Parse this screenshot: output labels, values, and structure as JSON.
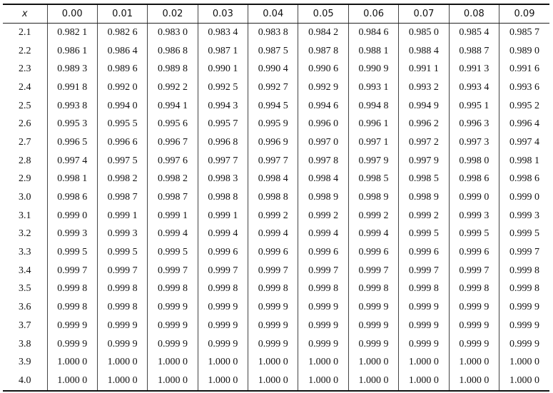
{
  "table": {
    "header": [
      "x",
      "0.00",
      "0.01",
      "0.02",
      "0.03",
      "0.04",
      "0.05",
      "0.06",
      "0.07",
      "0.08",
      "0.09"
    ],
    "rows": [
      [
        "2.1",
        "0.982 1",
        "0.982 6",
        "0.983 0",
        "0.983 4",
        "0.983 8",
        "0.984 2",
        "0.984 6",
        "0.985 0",
        "0.985 4",
        "0.985 7"
      ],
      [
        "2.2",
        "0.986 1",
        "0.986 4",
        "0.986 8",
        "0.987 1",
        "0.987 5",
        "0.987 8",
        "0.988 1",
        "0.988 4",
        "0.988 7",
        "0.989 0"
      ],
      [
        "2.3",
        "0.989 3",
        "0.989 6",
        "0.989 8",
        "0.990 1",
        "0.990 4",
        "0.990 6",
        "0.990 9",
        "0.991 1",
        "0.991 3",
        "0.991 6"
      ],
      [
        "2.4",
        "0.991 8",
        "0.992 0",
        "0.992 2",
        "0.992 5",
        "0.992 7",
        "0.992 9",
        "0.993 1",
        "0.993 2",
        "0.993 4",
        "0.993 6"
      ],
      [
        "2.5",
        "0.993 8",
        "0.994 0",
        "0.994 1",
        "0.994 3",
        "0.994 5",
        "0.994 6",
        "0.994 8",
        "0.994 9",
        "0.995 1",
        "0.995 2"
      ],
      [
        "2.6",
        "0.995 3",
        "0.995 5",
        "0.995 6",
        "0.995 7",
        "0.995 9",
        "0.996 0",
        "0.996 1",
        "0.996 2",
        "0.996 3",
        "0.996 4"
      ],
      [
        "2.7",
        "0.996 5",
        "0.996 6",
        "0.996 7",
        "0.996 8",
        "0.996 9",
        "0.997 0",
        "0.997 1",
        "0.997 2",
        "0.997 3",
        "0.997 4"
      ],
      [
        "2.8",
        "0.997 4",
        "0.997 5",
        "0.997 6",
        "0.997 7",
        "0.997 7",
        "0.997 8",
        "0.997 9",
        "0.997 9",
        "0.998 0",
        "0.998 1"
      ],
      [
        "2.9",
        "0.998 1",
        "0.998 2",
        "0.998 2",
        "0.998 3",
        "0.998 4",
        "0.998 4",
        "0.998 5",
        "0.998 5",
        "0.998 6",
        "0.998 6"
      ],
      [
        "3.0",
        "0.998 6",
        "0.998 7",
        "0.998 7",
        "0.998 8",
        "0.998 8",
        "0.998 9",
        "0.998 9",
        "0.998 9",
        "0.999 0",
        "0.999 0"
      ],
      [
        "3.1",
        "0.999 0",
        "0.999 1",
        "0.999 1",
        "0.999 1",
        "0.999 2",
        "0.999 2",
        "0.999 2",
        "0.999 2",
        "0.999 3",
        "0.999 3"
      ],
      [
        "3.2",
        "0.999 3",
        "0.999 3",
        "0.999 4",
        "0.999 4",
        "0.999 4",
        "0.999 4",
        "0.999 4",
        "0.999 5",
        "0.999 5",
        "0.999 5"
      ],
      [
        "3.3",
        "0.999 5",
        "0.999 5",
        "0.999 5",
        "0.999 6",
        "0.999 6",
        "0.999 6",
        "0.999 6",
        "0.999 6",
        "0.999 6",
        "0.999 7"
      ],
      [
        "3.4",
        "0.999 7",
        "0.999 7",
        "0.999 7",
        "0.999 7",
        "0.999 7",
        "0.999 7",
        "0.999 7",
        "0.999 7",
        "0.999 7",
        "0.999 8"
      ],
      [
        "3.5",
        "0.999 8",
        "0.999 8",
        "0.999 8",
        "0.999 8",
        "0.999 8",
        "0.999 8",
        "0.999 8",
        "0.999 8",
        "0.999 8",
        "0.999 8"
      ],
      [
        "3.6",
        "0.999 8",
        "0.999 8",
        "0.999 9",
        "0.999 9",
        "0.999 9",
        "0.999 9",
        "0.999 9",
        "0.999 9",
        "0.999 9",
        "0.999 9"
      ],
      [
        "3.7",
        "0.999 9",
        "0.999 9",
        "0.999 9",
        "0.999 9",
        "0.999 9",
        "0.999 9",
        "0.999 9",
        "0.999 9",
        "0.999 9",
        "0.999 9"
      ],
      [
        "3.8",
        "0.999 9",
        "0.999 9",
        "0.999 9",
        "0.999 9",
        "0.999 9",
        "0.999 9",
        "0.999 9",
        "0.999 9",
        "0.999 9",
        "0.999 9"
      ],
      [
        "3.9",
        "1.000 0",
        "1.000 0",
        "1.000 0",
        "1.000 0",
        "1.000 0",
        "1.000 0",
        "1.000 0",
        "1.000 0",
        "1.000 0",
        "1.000 0"
      ],
      [
        "4.0",
        "1.000 0",
        "1.000 0",
        "1.000 0",
        "1.000 0",
        "1.000 0",
        "1.000 0",
        "1.000 0",
        "1.000 0",
        "1.000 0",
        "1.000 0"
      ]
    ]
  }
}
